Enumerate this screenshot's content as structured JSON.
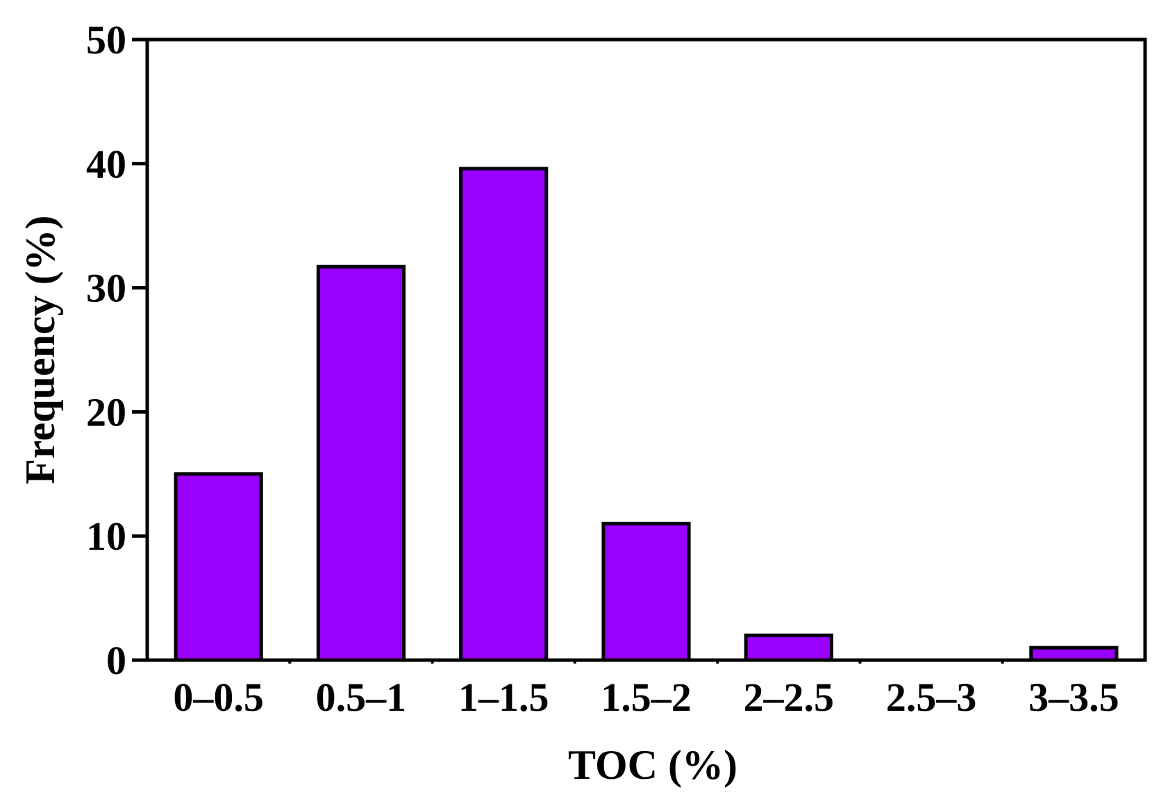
{
  "chart_data": {
    "type": "bar",
    "title": "",
    "xlabel": "TOC (%)",
    "ylabel": "Frequency (%)",
    "categories": [
      "0–0.5",
      "0.5–1",
      "1–1.5",
      "1.5–2",
      "2–2.5",
      "2.5–3",
      "3–3.5"
    ],
    "values": [
      15,
      31.7,
      39.6,
      11,
      2,
      0,
      1
    ],
    "ylim": [
      0,
      50
    ],
    "yticks": [
      0,
      10,
      20,
      30,
      40,
      50
    ],
    "grid": false,
    "bar_color": "#9900ff",
    "bar_edge_color": "#000000"
  }
}
